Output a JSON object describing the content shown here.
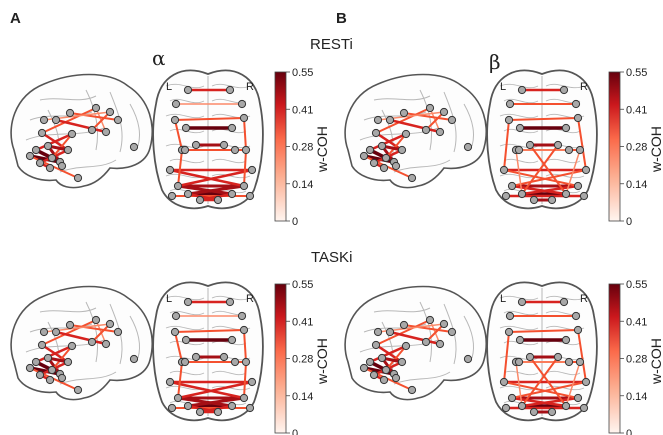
{
  "panels": [
    {
      "letter": "A"
    },
    {
      "letter": "B"
    }
  ],
  "conditions": [
    {
      "label": "RESTi"
    },
    {
      "label": "TASKi"
    }
  ],
  "bands": [
    {
      "symbol": "α"
    },
    {
      "symbol": "β"
    }
  ],
  "hemisphere_labels": {
    "left": "L",
    "right": "R"
  },
  "colorbar": {
    "title": "w-COH",
    "ticks": [
      "0.55",
      "0.41",
      "0.28",
      "0.14",
      "0"
    ],
    "colors": {
      "high": "#67000d",
      "mid": "#e83a2c",
      "low": "#fff5f0"
    }
  },
  "colors": {
    "brain_outline": "#555555",
    "sulci": "#b8b8b8",
    "node_fill": "#a8a8a8",
    "node_stroke": "#333333"
  }
}
